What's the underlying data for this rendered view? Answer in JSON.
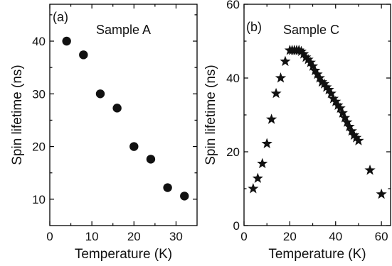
{
  "chart_data": [
    {
      "type": "scatter",
      "panel_label": "(a)",
      "annotation": "Sample A",
      "xlabel": "Temperature (K)",
      "ylabel": "Spin lifetime (ns)",
      "xlim": [
        0,
        35
      ],
      "ylim": [
        5,
        47
      ],
      "xticks": [
        0,
        10,
        20,
        30
      ],
      "yticks": [
        10,
        20,
        30,
        40
      ],
      "xtick_labels": [
        "0",
        "10",
        "20",
        "30"
      ],
      "ytick_labels": [
        "10",
        "20",
        "30",
        "40"
      ],
      "marker": "circle",
      "color": "#111111",
      "grid": false,
      "series": [
        {
          "x": [
            4,
            8,
            12,
            16,
            20,
            24,
            28,
            32
          ],
          "y": [
            40.0,
            37.4,
            30.0,
            27.3,
            20.0,
            17.6,
            12.2,
            10.6
          ]
        }
      ]
    },
    {
      "type": "scatter",
      "panel_label": "(b)",
      "annotation": "Sample C",
      "xlabel": "Temperature (K)",
      "ylabel": "Spin lifetime (ns)",
      "xlim": [
        0,
        64
      ],
      "ylim": [
        0,
        60
      ],
      "xticks": [
        0,
        20,
        40,
        60
      ],
      "yticks": [
        0,
        20,
        40,
        60
      ],
      "xtick_labels": [
        "0",
        "20",
        "40",
        "60"
      ],
      "ytick_labels": [
        "0",
        "20",
        "40",
        "60"
      ],
      "marker": "star",
      "color": "#111111",
      "grid": false,
      "series": [
        {
          "x": [
            4,
            6,
            8,
            10,
            12,
            14,
            16,
            18,
            20,
            21,
            22,
            23,
            24,
            25,
            26,
            27,
            28,
            29,
            30,
            31,
            32,
            33,
            34,
            35,
            36,
            37,
            38,
            39,
            40,
            41,
            42,
            43,
            44,
            45,
            46,
            47,
            48,
            49,
            50,
            55,
            60
          ],
          "y": [
            10,
            12.8,
            16.8,
            22.2,
            28.8,
            35.8,
            40,
            44.5,
            47.5,
            47.5,
            47.5,
            47.5,
            47.5,
            47.2,
            46.5,
            45.6,
            45,
            44.2,
            43.2,
            42,
            41,
            40,
            38.9,
            38.4,
            37.5,
            36.8,
            35.8,
            34.4,
            33.6,
            32.6,
            31.8,
            30.5,
            29.2,
            28,
            26.8,
            25.6,
            24.5,
            23.8,
            23,
            15,
            8.5
          ]
        }
      ]
    }
  ]
}
